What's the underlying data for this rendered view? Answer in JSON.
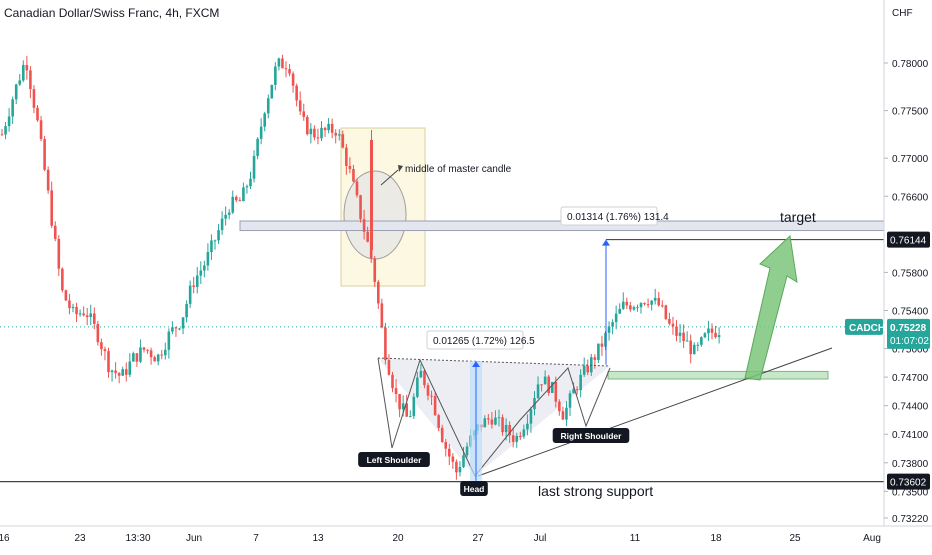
{
  "header": {
    "title": "Canadian Dollar/Swiss Franc, 4h, FXCM",
    "currency": "CHF"
  },
  "colors": {
    "up": "#26a69a",
    "down": "#ef5350",
    "axis_text": "#131722",
    "price_tag_bg": "#131722",
    "current_price_bg": "#26a69a",
    "zone_gray": "#e3e6ee",
    "zone_green": "#c8e6c9",
    "measure_blue": "#2962ff",
    "box_yellow": "#fdf8e1",
    "arrow_green": "#7bc67b"
  },
  "chart_data": {
    "type": "candlestick",
    "symbol": "CADCHF",
    "interval": "4h",
    "source": "FXCM",
    "ylim": [
      0.7312,
      0.7836
    ],
    "y_ticks": [
      {
        "value": 0.78,
        "label": "0.78000"
      },
      {
        "value": 0.775,
        "label": "0.77500"
      },
      {
        "value": 0.77,
        "label": "0.77000"
      },
      {
        "value": 0.766,
        "label": "0.76600"
      },
      {
        "value": 0.758,
        "label": "0.75800"
      },
      {
        "value": 0.754,
        "label": "0.75400"
      },
      {
        "value": 0.75,
        "label": "0.75000"
      },
      {
        "value": 0.747,
        "label": "0.74700"
      },
      {
        "value": 0.744,
        "label": "0.74400"
      },
      {
        "value": 0.741,
        "label": "0.74100"
      },
      {
        "value": 0.738,
        "label": "0.73800"
      },
      {
        "value": 0.735,
        "label": "0.73500"
      },
      {
        "value": 0.7322,
        "label": "0.73220"
      }
    ],
    "x_ticks": [
      "16",
      "23",
      "13:30",
      "Jun",
      "7",
      "13",
      "20",
      "27",
      "Jul",
      "11",
      "18",
      "25",
      "Aug"
    ],
    "price_tags": [
      {
        "value": 0.76144,
        "label": "0.76144"
      },
      {
        "value": 0.73602,
        "label": "0.73602"
      }
    ],
    "current_price": {
      "value": 0.75228,
      "symbol": "CADCHF",
      "price": "0.75228",
      "countdown": "01:07:02"
    },
    "anchors": [
      0.7725,
      0.7768,
      0.7805,
      0.7735,
      0.765,
      0.756,
      0.7535,
      0.754,
      0.7515,
      0.748,
      0.747,
      0.749,
      0.75,
      0.749,
      0.7515,
      0.753,
      0.757,
      0.759,
      0.762,
      0.765,
      0.7655,
      0.769,
      0.7755,
      0.7798,
      0.78,
      0.774,
      0.7725,
      0.7728,
      0.773,
      0.769,
      0.764,
      0.759,
      0.75,
      0.7448,
      0.7424,
      0.7475,
      0.7448,
      0.74,
      0.737,
      0.74,
      0.742,
      0.7428,
      0.7415,
      0.7405,
      0.743,
      0.747,
      0.7458,
      0.743,
      0.746,
      0.748,
      0.75,
      0.7525,
      0.7545,
      0.7548,
      0.7553,
      0.7545,
      0.752,
      0.751,
      0.7495,
      0.7515,
      0.752
    ],
    "drawings": {
      "resistance_zone": {
        "from": 0.7634,
        "to": 0.7624
      },
      "support_zone": {
        "from": 0.7476,
        "to": 0.7468
      },
      "support_line": {
        "value": 0.73602
      },
      "measure_left": {
        "from": 0.7361,
        "to": 0.7487,
        "label": "0.01265 (1.72%) 126.5"
      },
      "measure_right": {
        "from": 0.7483,
        "to": 0.76144,
        "label": "0.01314 (1.76%) 131.4"
      },
      "target_line": {
        "value": 0.76144
      }
    },
    "annotations": {
      "master_candle": "middle of master candle",
      "target": "target",
      "last_support": "last strong support",
      "left_shoulder": "Left Shoulder",
      "head": "Head",
      "right_shoulder": "Right Shoulder"
    }
  }
}
